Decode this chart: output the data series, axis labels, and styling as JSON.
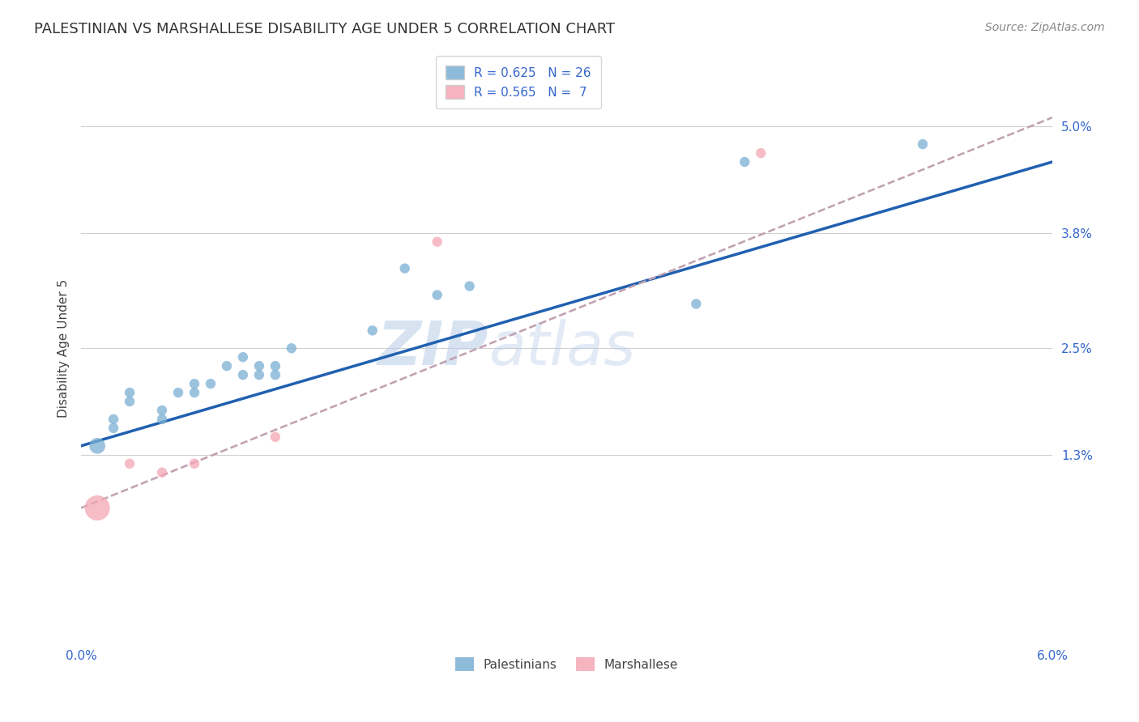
{
  "title": "PALESTINIAN VS MARSHALLESE DISABILITY AGE UNDER 5 CORRELATION CHART",
  "source": "Source: ZipAtlas.com",
  "ylabel": "Disability Age Under 5",
  "xlim": [
    0.0,
    0.06
  ],
  "ylim": [
    -0.008,
    0.058
  ],
  "y_ticks": [
    0.013,
    0.025,
    0.038,
    0.05
  ],
  "y_tick_labels": [
    "1.3%",
    "2.5%",
    "3.8%",
    "5.0%"
  ],
  "x_ticks": [
    0.0,
    0.012,
    0.024,
    0.036,
    0.048,
    0.06
  ],
  "x_tick_labels": [
    "0.0%",
    "",
    "",
    "",
    "",
    "6.0%"
  ],
  "grid_color": "#d0d0d0",
  "background_color": "#ffffff",
  "watermark": "ZIPatlas",
  "palestinians_x": [
    0.001,
    0.002,
    0.002,
    0.003,
    0.003,
    0.005,
    0.005,
    0.006,
    0.007,
    0.007,
    0.008,
    0.009,
    0.01,
    0.01,
    0.011,
    0.011,
    0.012,
    0.012,
    0.013,
    0.018,
    0.022,
    0.024,
    0.038,
    0.041,
    0.052,
    0.02
  ],
  "palestinians_y": [
    0.014,
    0.016,
    0.017,
    0.019,
    0.02,
    0.017,
    0.018,
    0.02,
    0.02,
    0.021,
    0.021,
    0.023,
    0.022,
    0.024,
    0.022,
    0.023,
    0.022,
    0.023,
    0.025,
    0.027,
    0.031,
    0.032,
    0.03,
    0.046,
    0.048,
    0.034
  ],
  "palestinians_sizes": [
    200,
    80,
    80,
    80,
    80,
    80,
    80,
    80,
    80,
    80,
    80,
    80,
    80,
    80,
    80,
    80,
    80,
    80,
    80,
    80,
    80,
    80,
    80,
    80,
    80,
    80
  ],
  "palestinians_color": "#7bafd4",
  "palestinians_alpha": 0.75,
  "marshallese_x": [
    0.001,
    0.003,
    0.005,
    0.007,
    0.012,
    0.022,
    0.042
  ],
  "marshallese_y": [
    0.007,
    0.012,
    0.011,
    0.012,
    0.015,
    0.037,
    0.047
  ],
  "marshallese_sizes": [
    500,
    80,
    80,
    80,
    80,
    80,
    80
  ],
  "marshallese_color": "#f4a7b5",
  "marshallese_alpha": 0.75,
  "line_pal_color": "#2060b0",
  "line_pal_x0": 0.0,
  "line_pal_x1": 0.06,
  "line_pal_y0": 0.014,
  "line_pal_y1": 0.046,
  "line_mar_color": "#c0a0b0",
  "line_mar_x0": 0.0,
  "line_mar_x1": 0.06,
  "line_mar_y0": 0.007,
  "line_mar_y1": 0.051,
  "legend_r_pal": "R = 0.625",
  "legend_n_pal": "N = 26",
  "legend_r_mar": "R = 0.565",
  "legend_n_mar": "N =  7",
  "pal_legend_label": "Palestinians",
  "mar_legend_label": "Marshallese",
  "title_fontsize": 13,
  "axis_label_fontsize": 11,
  "tick_fontsize": 11,
  "legend_fontsize": 11,
  "source_fontsize": 10
}
